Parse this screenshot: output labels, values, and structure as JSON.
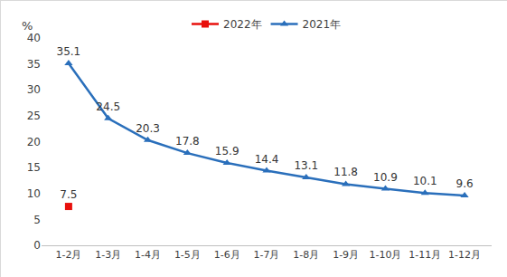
{
  "chart_data": {
    "type": "line",
    "y_label": "%",
    "categories": [
      "1-2月",
      "1-3月",
      "1-4月",
      "1-5月",
      "1-6月",
      "1-7月",
      "1-8月",
      "1-9月",
      "1-10月",
      "1-11月",
      "1-12月"
    ],
    "series": [
      {
        "name": "2022年",
        "color": "#e8100c",
        "marker": "square",
        "line_style": "solid",
        "values": [
          7.5,
          null,
          null,
          null,
          null,
          null,
          null,
          null,
          null,
          null,
          null
        ]
      },
      {
        "name": "2021年",
        "color": "#2a6fbb",
        "marker": "triangle-up",
        "line_style": "solid",
        "values": [
          35.1,
          24.5,
          20.3,
          17.8,
          15.9,
          14.4,
          13.1,
          11.8,
          10.9,
          10.1,
          9.6
        ]
      }
    ],
    "ylim": [
      0,
      40
    ],
    "yticks": [
      0,
      5,
      10,
      15,
      20,
      25,
      30,
      35,
      40
    ],
    "grid": false,
    "legend": "top",
    "data_labels": true
  }
}
